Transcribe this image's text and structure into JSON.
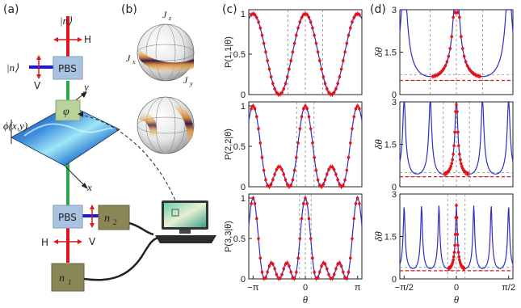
{
  "panel_labels": {
    "a": "(a)",
    "b": "(b)",
    "c": "(c)",
    "d": "(d)"
  },
  "setup": {
    "top_state": "|n⟩",
    "left_state": "|n⟩",
    "top_pol": "H",
    "left_pol": "V",
    "pbs_top": "PBS",
    "pbs_bottom": "PBS",
    "phase_element": "φ",
    "phase_function": "ϕ(x,y)",
    "axis_x": "x",
    "axis_y": "y",
    "bottom_left_pol": "H",
    "bottom_right_pol": "V",
    "detector_n2": "n",
    "detector_n2_sub": "2",
    "detector_n1": "n",
    "detector_n1_sub": "1"
  },
  "sphere": {
    "jz": "J",
    "jz_sub": "z",
    "jx": "J",
    "jx_sub": "x",
    "jy": "J",
    "jy_sub": "y"
  },
  "colors": {
    "data": "#e0141c",
    "fit": "#2f2fc8",
    "grid": "#888888",
    "beam_red": "#e0141c",
    "beam_green": "#2aa84a",
    "beam_blue": "#1a1ad8"
  },
  "chart_data": [
    {
      "type": "line",
      "panel": "c",
      "ylabel": "P(1,1|θ)",
      "xlim": [
        -3.4,
        3.4
      ],
      "ylim": [
        0,
        1.05
      ],
      "yticks": [
        "0",
        "0.5",
        "1"
      ],
      "vlines": [
        -1.0472,
        0,
        1.0472
      ],
      "series": [
        {
          "n": 1
        }
      ]
    },
    {
      "type": "line",
      "panel": "c",
      "ylabel": "P(2,2|θ)",
      "xlim": [
        -3.4,
        3.4
      ],
      "ylim": [
        0,
        1.05
      ],
      "yticks": [
        "0",
        "0.5",
        "1"
      ],
      "vlines": [
        -0.5236,
        0,
        0.5236
      ],
      "series": [
        {
          "n": 2
        }
      ]
    },
    {
      "type": "line",
      "panel": "c",
      "ylabel": "P(3,3|θ)",
      "xlabel": "θ",
      "xlim": [
        -3.4,
        3.4
      ],
      "ylim": [
        0,
        1.05
      ],
      "yticks": [
        "0",
        "0.5",
        "1"
      ],
      "xticks": [
        "−π",
        "0",
        "π"
      ],
      "vlines": [
        -0.3491,
        0,
        0.3491
      ],
      "series": [
        {
          "n": 3
        }
      ]
    },
    {
      "type": "line",
      "panel": "d",
      "ylabel": "δθ",
      "xlim": [
        -1.7,
        1.7
      ],
      "ylim": [
        0,
        3
      ],
      "yticks": [
        "0",
        "1.5",
        "3"
      ],
      "vlines": [
        -0.7854,
        0,
        0.7854
      ],
      "hlines": [
        0.7071,
        0.5
      ],
      "series": [
        {
          "n": 1
        }
      ]
    },
    {
      "type": "line",
      "panel": "d",
      "ylabel": "δθ",
      "xlim": [
        -1.7,
        1.7
      ],
      "ylim": [
        0,
        3
      ],
      "yticks": [
        "0",
        "1.5",
        "3"
      ],
      "vlines": [
        -0.3927,
        0,
        0.3927
      ],
      "hlines": [
        0.5,
        0.3535
      ],
      "series": [
        {
          "n": 2
        }
      ]
    },
    {
      "type": "line",
      "panel": "d",
      "ylabel": "δθ",
      "xlabel": "θ",
      "xlim": [
        -1.7,
        1.7
      ],
      "ylim": [
        0,
        3
      ],
      "yticks": [
        "0",
        "1.5",
        "3"
      ],
      "xticks": [
        "−π/2",
        "0",
        "π/2"
      ],
      "vlines": [
        -0.2618,
        0,
        0.2618
      ],
      "hlines": [
        0.4082,
        0.2887
      ],
      "series": [
        {
          "n": 3
        }
      ]
    }
  ]
}
